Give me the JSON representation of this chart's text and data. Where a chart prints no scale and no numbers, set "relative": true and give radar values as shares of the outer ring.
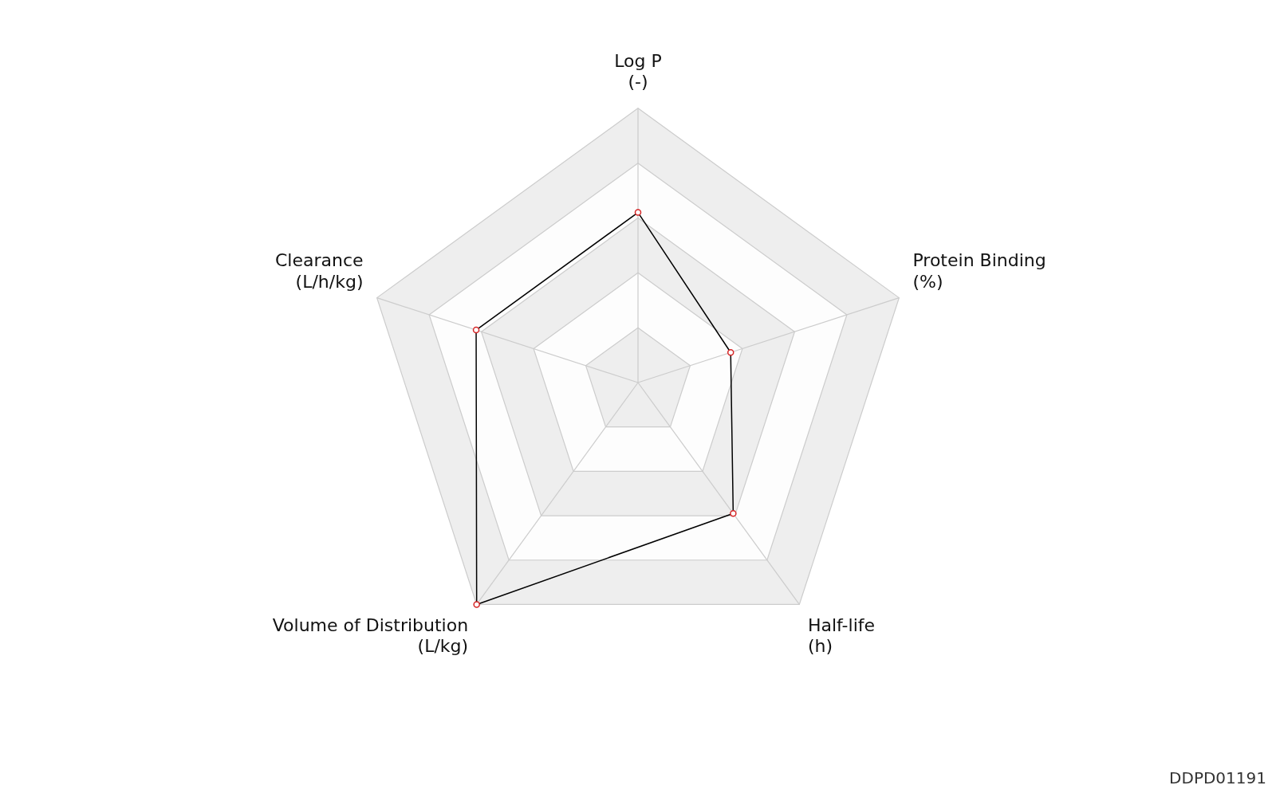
{
  "chart_data": {
    "type": "radar",
    "categories": [
      "Log P\n(-)",
      "Protein Binding\n(%)",
      "Half-life\n(h)",
      "Volume of Distribution\n(L/kg)",
      "Clearance\n(L/h/kg)"
    ],
    "relative": true,
    "series": [
      {
        "color": "#000000",
        "values": [
          0.62,
          0.355,
          0.59,
          1.0,
          0.62
        ]
      }
    ],
    "grid": true,
    "marker": "circle",
    "legend": false,
    "annotations": [
      "DDPD01191"
    ]
  }
}
